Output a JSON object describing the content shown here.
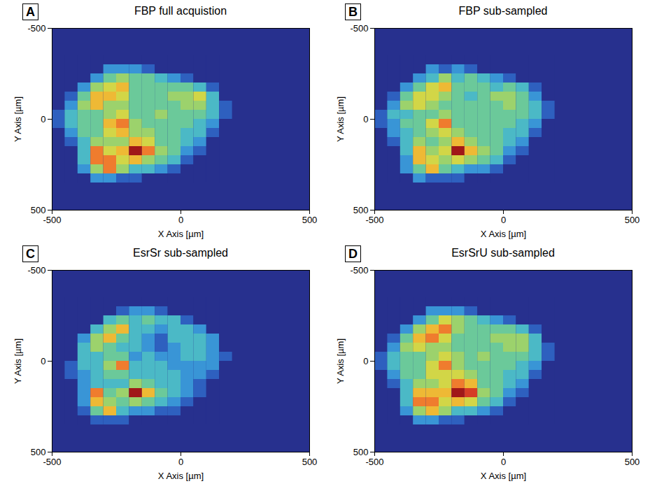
{
  "chart_data": [
    {
      "type": "heatmap",
      "panel": "A",
      "title": "FBP full acquistion",
      "x_label": "X Axis [µm]",
      "y_label": "Y Axis [µm]",
      "xlim": [
        -500,
        500
      ],
      "ylim": [
        500,
        -500
      ],
      "xticks": [
        -500,
        0,
        500
      ],
      "yticks": [
        -500,
        0,
        500
      ],
      "color_range": [
        0,
        10
      ],
      "cell_size": 50,
      "x": [
        -475,
        -425,
        -375,
        -325,
        -275,
        -225,
        -175,
        -125,
        -75,
        -25,
        25,
        75,
        125,
        175
      ],
      "y": [
        -325,
        -275,
        -225,
        -175,
        -125,
        -75,
        -25,
        25,
        75,
        125,
        175,
        225,
        275,
        325
      ],
      "cells": [
        [
          0,
          0,
          0,
          0,
          0,
          0,
          0,
          0,
          0,
          0,
          0,
          0,
          0,
          0
        ],
        [
          0,
          0,
          0,
          0,
          2,
          2,
          2,
          1,
          0,
          0,
          0,
          0,
          0,
          0
        ],
        [
          0,
          0,
          0,
          2,
          4,
          5,
          4,
          4,
          3,
          2,
          1,
          0,
          0,
          0
        ],
        [
          0,
          0,
          2,
          5,
          6,
          7,
          4,
          4,
          4,
          4,
          4,
          3,
          1,
          0
        ],
        [
          0,
          1,
          4,
          7,
          7,
          6,
          4,
          4,
          4,
          5,
          5,
          6,
          3,
          0
        ],
        [
          0,
          2,
          5,
          7,
          5,
          5,
          4,
          4,
          4,
          4,
          5,
          5,
          3,
          1
        ],
        [
          1,
          3,
          4,
          4,
          5,
          6,
          4,
          4,
          5,
          4,
          4,
          4,
          3,
          1
        ],
        [
          1,
          3,
          4,
          4,
          7,
          8,
          5,
          4,
          4,
          4,
          4,
          3,
          2,
          0
        ],
        [
          0,
          2,
          4,
          4,
          6,
          7,
          5,
          5,
          4,
          4,
          3,
          3,
          1,
          0
        ],
        [
          0,
          1,
          3,
          5,
          5,
          5,
          7,
          6,
          4,
          4,
          3,
          2,
          0,
          0
        ],
        [
          0,
          0,
          3,
          8,
          6,
          7,
          10,
          8,
          5,
          4,
          2,
          1,
          0,
          0
        ],
        [
          0,
          0,
          3,
          8,
          8,
          6,
          7,
          5,
          4,
          3,
          1,
          0,
          0,
          0
        ],
        [
          0,
          0,
          2,
          5,
          8,
          5,
          3,
          3,
          2,
          1,
          0,
          0,
          0,
          0
        ],
        [
          0,
          0,
          0,
          2,
          2,
          1,
          1,
          0,
          0,
          0,
          0,
          0,
          0,
          0
        ]
      ]
    },
    {
      "type": "heatmap",
      "panel": "B",
      "title": "FBP sub-sampled",
      "x_label": "X Axis [µm]",
      "y_label": "Y Axis [µm]",
      "xlim": [
        -500,
        500
      ],
      "ylim": [
        500,
        -500
      ],
      "xticks": [
        -500,
        0,
        500
      ],
      "yticks": [
        -500,
        0,
        500
      ],
      "color_range": [
        0,
        10
      ],
      "cell_size": 50,
      "x": [
        -475,
        -425,
        -375,
        -325,
        -275,
        -225,
        -175,
        -125,
        -75,
        -25,
        25,
        75,
        125,
        175
      ],
      "y": [
        -325,
        -275,
        -225,
        -175,
        -125,
        -75,
        -25,
        25,
        75,
        125,
        175,
        225,
        275,
        325
      ],
      "cells": [
        [
          0,
          0,
          0,
          0,
          0,
          0,
          0,
          0,
          0,
          0,
          0,
          0,
          0,
          0
        ],
        [
          0,
          0,
          0,
          0,
          2,
          1,
          2,
          1,
          0,
          0,
          0,
          0,
          0,
          0
        ],
        [
          0,
          0,
          0,
          2,
          3,
          5,
          3,
          4,
          3,
          2,
          1,
          0,
          0,
          0
        ],
        [
          0,
          0,
          2,
          4,
          6,
          7,
          4,
          4,
          4,
          3,
          4,
          3,
          1,
          0
        ],
        [
          0,
          1,
          4,
          6,
          6,
          5,
          4,
          3,
          4,
          5,
          5,
          4,
          2,
          0
        ],
        [
          0,
          2,
          5,
          6,
          5,
          4,
          4,
          4,
          4,
          4,
          5,
          4,
          3,
          1
        ],
        [
          1,
          3,
          3,
          4,
          4,
          5,
          4,
          4,
          4,
          4,
          4,
          4,
          3,
          1
        ],
        [
          1,
          2,
          4,
          4,
          6,
          8,
          4,
          4,
          4,
          4,
          4,
          3,
          2,
          0
        ],
        [
          0,
          2,
          3,
          4,
          5,
          6,
          5,
          4,
          4,
          4,
          3,
          3,
          1,
          0
        ],
        [
          0,
          1,
          3,
          5,
          4,
          5,
          7,
          5,
          4,
          4,
          3,
          2,
          0,
          0
        ],
        [
          0,
          0,
          3,
          7,
          5,
          6,
          10,
          7,
          5,
          4,
          2,
          1,
          0,
          0
        ],
        [
          0,
          0,
          2,
          7,
          6,
          5,
          6,
          5,
          4,
          3,
          1,
          0,
          0,
          0
        ],
        [
          0,
          0,
          2,
          4,
          7,
          4,
          3,
          2,
          2,
          1,
          0,
          0,
          0,
          0
        ],
        [
          0,
          0,
          0,
          2,
          1,
          1,
          1,
          0,
          0,
          0,
          0,
          0,
          0,
          0
        ]
      ]
    },
    {
      "type": "heatmap",
      "panel": "C",
      "title": "EsrSr sub-sampled",
      "x_label": "X Axis [µm]",
      "y_label": "Y Axis [µm]",
      "xlim": [
        -500,
        500
      ],
      "ylim": [
        500,
        -500
      ],
      "xticks": [
        -500,
        0,
        500
      ],
      "yticks": [
        -500,
        0,
        500
      ],
      "color_range": [
        0,
        10
      ],
      "cell_size": 50,
      "x": [
        -475,
        -425,
        -375,
        -325,
        -275,
        -225,
        -175,
        -125,
        -75,
        -25,
        25,
        75,
        125,
        175
      ],
      "y": [
        -325,
        -275,
        -225,
        -175,
        -125,
        -75,
        -25,
        25,
        75,
        125,
        175,
        225,
        275,
        325
      ],
      "cells": [
        [
          0,
          0,
          0,
          0,
          0,
          0,
          0,
          0,
          0,
          0,
          0,
          0,
          0,
          0
        ],
        [
          0,
          0,
          0,
          0,
          0,
          1,
          2,
          2,
          1,
          0,
          0,
          0,
          0,
          0
        ],
        [
          0,
          0,
          0,
          0,
          3,
          4,
          3,
          4,
          3,
          3,
          1,
          0,
          0,
          0
        ],
        [
          0,
          0,
          0,
          3,
          5,
          7,
          3,
          3,
          2,
          3,
          3,
          2,
          0,
          0
        ],
        [
          0,
          0,
          2,
          5,
          7,
          4,
          3,
          2,
          1,
          3,
          3,
          3,
          2,
          0
        ],
        [
          0,
          0,
          3,
          5,
          4,
          3,
          3,
          2,
          1,
          2,
          3,
          3,
          2,
          0
        ],
        [
          0,
          0,
          3,
          3,
          4,
          4,
          2,
          3,
          2,
          2,
          3,
          3,
          2,
          1
        ],
        [
          0,
          1,
          3,
          3,
          5,
          8,
          3,
          3,
          3,
          2,
          2,
          2,
          2,
          0
        ],
        [
          0,
          1,
          2,
          3,
          4,
          4,
          3,
          3,
          3,
          3,
          2,
          2,
          1,
          0
        ],
        [
          0,
          0,
          2,
          3,
          3,
          3,
          5,
          4,
          3,
          3,
          2,
          1,
          0,
          0
        ],
        [
          0,
          0,
          2,
          8,
          4,
          5,
          10,
          7,
          4,
          3,
          2,
          1,
          0,
          0
        ],
        [
          0,
          0,
          2,
          7,
          5,
          4,
          5,
          4,
          3,
          2,
          1,
          0,
          0,
          0
        ],
        [
          0,
          0,
          1,
          4,
          7,
          3,
          2,
          2,
          1,
          1,
          0,
          0,
          0,
          0
        ],
        [
          0,
          0,
          0,
          1,
          1,
          1,
          0,
          0,
          0,
          0,
          0,
          0,
          0,
          0
        ]
      ]
    },
    {
      "type": "heatmap",
      "panel": "D",
      "title": "EsrSrU sub-sampled",
      "x_label": "X Axis [µm]",
      "y_label": "Y Axis [µm]",
      "xlim": [
        -500,
        500
      ],
      "ylim": [
        500,
        -500
      ],
      "xticks": [
        -500,
        0,
        500
      ],
      "yticks": [
        -500,
        0,
        500
      ],
      "color_range": [
        0,
        10
      ],
      "cell_size": 50,
      "x": [
        -475,
        -425,
        -375,
        -325,
        -275,
        -225,
        -175,
        -125,
        -75,
        -25,
        25,
        75,
        125,
        175
      ],
      "y": [
        -325,
        -275,
        -225,
        -175,
        -125,
        -75,
        -25,
        25,
        75,
        125,
        175,
        225,
        275,
        325
      ],
      "cells": [
        [
          0,
          0,
          0,
          0,
          0,
          0,
          0,
          0,
          0,
          0,
          0,
          0,
          0,
          0
        ],
        [
          0,
          0,
          0,
          0,
          2,
          2,
          2,
          1,
          0,
          0,
          0,
          0,
          0,
          0
        ],
        [
          0,
          0,
          0,
          2,
          4,
          6,
          5,
          4,
          3,
          2,
          1,
          0,
          0,
          0
        ],
        [
          0,
          0,
          2,
          5,
          7,
          8,
          5,
          4,
          4,
          4,
          4,
          3,
          1,
          0
        ],
        [
          0,
          1,
          4,
          7,
          8,
          6,
          4,
          4,
          4,
          5,
          5,
          5,
          3,
          0
        ],
        [
          0,
          2,
          5,
          6,
          5,
          5,
          4,
          4,
          4,
          4,
          5,
          5,
          3,
          1
        ],
        [
          1,
          3,
          4,
          4,
          5,
          6,
          5,
          4,
          5,
          4,
          4,
          4,
          3,
          1
        ],
        [
          1,
          3,
          4,
          4,
          6,
          8,
          5,
          4,
          4,
          4,
          4,
          3,
          2,
          0
        ],
        [
          0,
          2,
          4,
          4,
          6,
          6,
          6,
          5,
          4,
          4,
          3,
          3,
          1,
          0
        ],
        [
          0,
          1,
          3,
          5,
          5,
          6,
          8,
          7,
          4,
          4,
          3,
          2,
          0,
          0
        ],
        [
          0,
          0,
          3,
          7,
          7,
          7,
          10,
          9,
          5,
          4,
          2,
          1,
          0,
          0
        ],
        [
          0,
          0,
          3,
          8,
          8,
          6,
          7,
          6,
          4,
          3,
          1,
          0,
          0,
          0
        ],
        [
          0,
          0,
          2,
          5,
          7,
          5,
          3,
          3,
          2,
          1,
          0,
          0,
          0,
          0
        ],
        [
          0,
          0,
          0,
          2,
          2,
          1,
          1,
          0,
          0,
          0,
          0,
          0,
          0,
          0
        ]
      ]
    }
  ]
}
